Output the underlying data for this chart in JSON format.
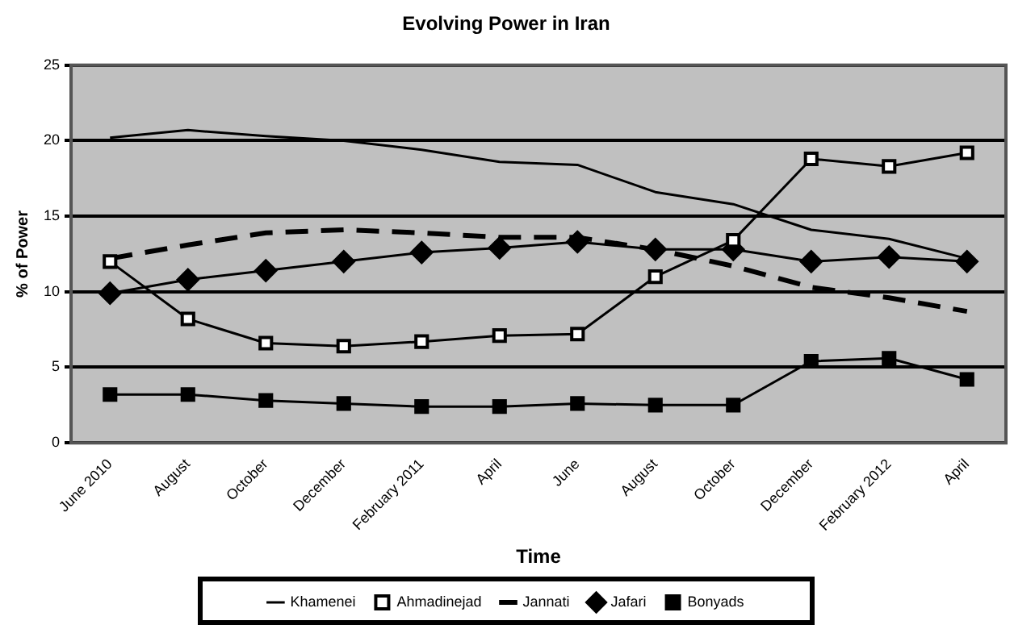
{
  "chart_data": {
    "type": "line",
    "title": "Evolving Power in Iran",
    "xlabel": "Time",
    "ylabel": "% of Power",
    "categories": [
      "June 2010",
      "August",
      "October",
      "December",
      "February 2011",
      "April",
      "June",
      "August",
      "October",
      "December",
      "February 2012",
      "April"
    ],
    "series": [
      {
        "name": "Khamenei",
        "color": "#000000",
        "marker": "none",
        "line_style": "solid",
        "values": [
          20.2,
          20.7,
          20.3,
          20.0,
          19.4,
          18.6,
          18.4,
          16.6,
          15.8,
          14.1,
          13.5,
          12.2
        ]
      },
      {
        "name": "Ahmadinejad",
        "color": "#000000",
        "marker": "square",
        "colors": [
          "#ffffff",
          "#ffffff",
          "#ffffff",
          "#ffffff",
          "#ffffff",
          "#ffffff",
          "#ffffff",
          "#ffffff",
          "#ffffff",
          "#ffffff",
          "#ffffff",
          "#ffffff"
        ],
        "line_style": "solid",
        "values": [
          12.0,
          8.2,
          6.6,
          6.4,
          6.7,
          7.1,
          7.2,
          11.0,
          13.4,
          18.8,
          18.3,
          19.2
        ]
      },
      {
        "name": "Jannati",
        "color": "#000000",
        "marker": "none",
        "line_style": "dashed",
        "values": [
          12.2,
          13.1,
          13.9,
          14.1,
          13.9,
          13.6,
          13.6,
          12.8,
          11.7,
          10.3,
          9.6,
          8.7
        ]
      },
      {
        "name": "Jafari",
        "color": "#000000",
        "marker": "diamond",
        "line_style": "solid",
        "values": [
          9.9,
          10.8,
          11.4,
          12.0,
          12.6,
          12.9,
          13.3,
          12.8,
          12.8,
          12.0,
          12.3,
          12.0
        ]
      },
      {
        "name": "Bonyads",
        "color": "#000000",
        "marker": "square",
        "line_style": "solid",
        "values": [
          3.2,
          3.2,
          2.8,
          2.6,
          2.4,
          2.4,
          2.6,
          2.5,
          2.5,
          5.4,
          5.6,
          4.2
        ]
      }
    ],
    "ylim": [
      0,
      25
    ],
    "yticks": [
      0,
      5,
      10,
      15,
      20,
      25
    ],
    "grid": "y",
    "legend": "bottom"
  }
}
